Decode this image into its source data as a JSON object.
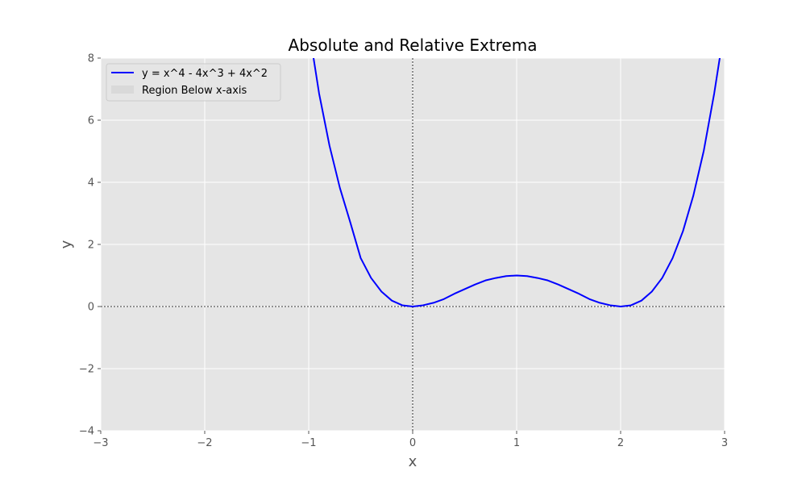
{
  "chart_data": {
    "type": "line",
    "title": "Absolute and Relative Extrema",
    "xlabel": "x",
    "ylabel": "y",
    "xlim": [
      -3,
      3
    ],
    "ylim": [
      -4,
      8
    ],
    "x_ticks": [
      -3,
      -2,
      -1,
      0,
      1,
      2,
      3
    ],
    "y_ticks": [
      -4,
      -2,
      0,
      2,
      4,
      6,
      8
    ],
    "x_tick_labels": [
      "−3",
      "−2",
      "−1",
      "0",
      "1",
      "2",
      "3"
    ],
    "y_tick_labels": [
      "−4",
      "−2",
      "0",
      "2",
      "4",
      "6",
      "8"
    ],
    "grid": true,
    "legend_position": "top-left",
    "reference_lines": {
      "x": 0,
      "y": 0,
      "style": "dotted",
      "color": "#000000"
    },
    "series": [
      {
        "name": "y = x^4 - 4x^3 + 4x^2",
        "color": "#0000ff",
        "x": [
          -1.0,
          -0.9,
          -0.8,
          -0.7,
          -0.6,
          -0.5,
          -0.4,
          -0.3,
          -0.2,
          -0.1,
          0.0,
          0.1,
          0.2,
          0.3,
          0.4,
          0.5,
          0.6,
          0.7,
          0.8,
          0.9,
          1.0,
          1.1,
          1.2,
          1.3,
          1.4,
          1.5,
          1.6,
          1.7,
          1.8,
          1.9,
          2.0,
          2.1,
          2.2,
          2.3,
          2.4,
          2.5,
          2.6,
          2.7,
          2.8,
          2.9,
          3.0
        ],
        "y": [
          9.0,
          6.86,
          5.18,
          3.82,
          2.71,
          1.56,
          0.92,
          0.48,
          0.19,
          0.04,
          0.0,
          0.04,
          0.12,
          0.24,
          0.41,
          0.56,
          0.71,
          0.84,
          0.92,
          0.98,
          1.0,
          0.98,
          0.92,
          0.84,
          0.71,
          0.56,
          0.41,
          0.24,
          0.12,
          0.04,
          0.0,
          0.04,
          0.19,
          0.48,
          0.92,
          1.56,
          2.43,
          3.58,
          5.02,
          6.86,
          9.0
        ]
      },
      {
        "name": "Region Below x-axis",
        "type": "area",
        "color": "#d9d9d9",
        "values": []
      }
    ]
  },
  "colors": {
    "plot_background": "#e5e5e5",
    "grid": "#ffffff",
    "curve": "#0000ff"
  }
}
